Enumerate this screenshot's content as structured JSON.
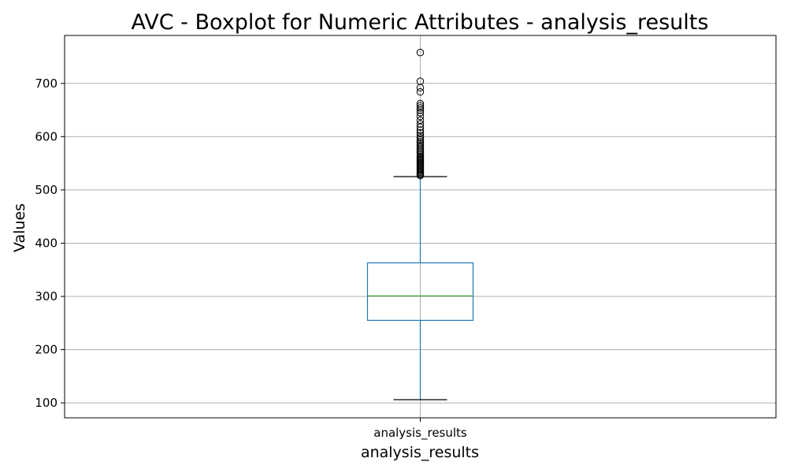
{
  "chart_data": {
    "type": "boxplot",
    "title": "AVC - Boxplot for Numeric Attributes - analysis_results",
    "xlabel": "analysis_results",
    "ylabel": "Values",
    "categories": [
      "analysis_results"
    ],
    "ylim": [
      72,
      790
    ],
    "yticks": [
      100,
      200,
      300,
      400,
      500,
      600,
      700
    ],
    "grid": true,
    "colors": {
      "box": "#1f77b4",
      "median": "#2ca02c",
      "whisker_cap": "#000000",
      "outlier": "#000000",
      "grid": "#b0b0b0"
    },
    "box": {
      "whisker_low": 106,
      "q1": 255,
      "median": 301,
      "q3": 363,
      "whisker_high": 525,
      "outliers": [
        527,
        529,
        531,
        533,
        535,
        537,
        539,
        541,
        543,
        545,
        547,
        549,
        551,
        553,
        555,
        557,
        559,
        561,
        563,
        566,
        569,
        572,
        575,
        578,
        581,
        584,
        587,
        590,
        594,
        598,
        602,
        607,
        612,
        618,
        624,
        631,
        638,
        645,
        650,
        654,
        658,
        662,
        684,
        692,
        704,
        758
      ]
    }
  }
}
